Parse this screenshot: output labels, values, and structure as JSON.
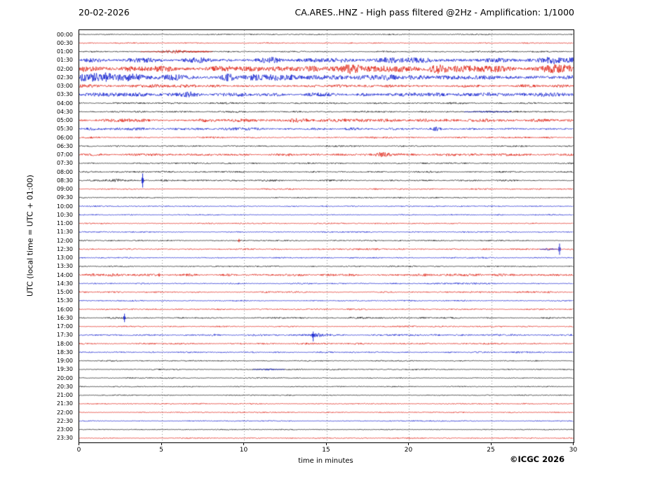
{
  "header": {
    "date": "20-02-2026",
    "title": "CA.ARES..HNZ - High pass filtered @2Hz - Amplification: 1/1000"
  },
  "axes": {
    "y_label": "UTC (local time = UTC + 01:00)",
    "x_label": "time in minutes",
    "x_ticks": [
      0,
      5,
      10,
      15,
      20,
      25,
      30
    ],
    "x_range": [
      0,
      30
    ]
  },
  "footer": {
    "copyright": "©ICGC 2026"
  },
  "colors": {
    "black": "#000000",
    "red": "#dd1100",
    "blue": "#0011cc",
    "grid": "#888888"
  },
  "chart_data": {
    "type": "line",
    "variant": "helicorder",
    "minutes_per_row": 30,
    "x_range": [
      0,
      30
    ],
    "rows": [
      {
        "label": "00:00",
        "color": "black",
        "amp": 0.6,
        "events": []
      },
      {
        "label": "00:30",
        "color": "red",
        "amp": 0.55,
        "events": []
      },
      {
        "label": "01:00",
        "color": "black",
        "amp": 0.7,
        "events": [
          {
            "type": "burst",
            "t": 5.8,
            "width": 1.3,
            "amp": 2.2,
            "color": "red"
          },
          {
            "type": "burst",
            "t": 7.3,
            "width": 0.5,
            "amp": 1.0,
            "color": "red"
          }
        ]
      },
      {
        "label": "01:30",
        "color": "blue",
        "amp": 2.6,
        "events": [
          {
            "type": "burst",
            "t": 11.5,
            "width": 0.8,
            "amp": 1.8
          },
          {
            "type": "burst",
            "t": 20.5,
            "width": 2.5,
            "amp": 1.2
          },
          {
            "type": "burst",
            "t": 29.0,
            "width": 1.2,
            "amp": 1.8
          }
        ]
      },
      {
        "label": "02:00",
        "color": "red",
        "amp": 3.0,
        "events": [
          {
            "type": "burst",
            "t": 16.5,
            "width": 0.9,
            "amp": 2.2
          },
          {
            "type": "burst",
            "t": 22.5,
            "width": 3.0,
            "amp": 2.2
          },
          {
            "type": "burst",
            "t": 29.0,
            "width": 1.2,
            "amp": 2.0
          }
        ]
      },
      {
        "label": "02:30",
        "color": "blue",
        "amp": 3.0,
        "events": [
          {
            "type": "burst",
            "t": 1.8,
            "width": 2.0,
            "amp": 2.6
          },
          {
            "type": "burst",
            "t": 5.3,
            "width": 0.8,
            "amp": 2.2
          },
          {
            "type": "burst",
            "t": 9.2,
            "width": 1.2,
            "amp": 1.2
          }
        ]
      },
      {
        "label": "03:00",
        "color": "red",
        "amp": 1.7,
        "events": []
      },
      {
        "label": "03:30",
        "color": "blue",
        "amp": 2.0,
        "events": [
          {
            "type": "burst",
            "t": 6.9,
            "width": 1.0,
            "amp": 1.8
          },
          {
            "type": "burst",
            "t": 24.6,
            "width": 1.2,
            "amp": 1.3
          },
          {
            "type": "burst",
            "t": 28.2,
            "width": 0.8,
            "amp": 1.4
          }
        ]
      },
      {
        "label": "04:00",
        "color": "black",
        "amp": 0.9,
        "events": []
      },
      {
        "label": "04:30",
        "color": "black",
        "amp": 0.85,
        "events": [
          {
            "type": "burst",
            "t": 24.8,
            "width": 0.9,
            "amp": 1.1,
            "color": "blue"
          }
        ]
      },
      {
        "label": "05:00",
        "color": "red",
        "amp": 1.7,
        "events": [
          {
            "type": "burst",
            "t": 12.9,
            "width": 0.6,
            "amp": 1.4
          }
        ]
      },
      {
        "label": "05:30",
        "color": "blue",
        "amp": 1.4,
        "events": [
          {
            "type": "burst",
            "t": 21.6,
            "width": 0.4,
            "amp": 1.6
          }
        ]
      },
      {
        "label": "06:00",
        "color": "red",
        "amp": 0.9,
        "events": []
      },
      {
        "label": "06:30",
        "color": "black",
        "amp": 0.7,
        "events": []
      },
      {
        "label": "07:00",
        "color": "red",
        "amp": 1.3,
        "events": [
          {
            "type": "burst",
            "t": 18.3,
            "width": 0.6,
            "amp": 1.8
          }
        ]
      },
      {
        "label": "07:30",
        "color": "black",
        "amp": 0.75,
        "events": []
      },
      {
        "label": "08:00",
        "color": "black",
        "amp": 0.8,
        "events": []
      },
      {
        "label": "08:30",
        "color": "black",
        "amp": 0.9,
        "events": [
          {
            "type": "spike",
            "t": 3.85,
            "up": 10,
            "down": 10,
            "color": "blue"
          },
          {
            "type": "burst",
            "t": 2.3,
            "width": 0.5,
            "amp": 0.8
          }
        ]
      },
      {
        "label": "09:00",
        "color": "red",
        "amp": 0.75,
        "events": []
      },
      {
        "label": "09:30",
        "color": "black",
        "amp": 0.65,
        "events": []
      },
      {
        "label": "10:00",
        "color": "blue",
        "amp": 0.65,
        "events": []
      },
      {
        "label": "10:30",
        "color": "blue",
        "amp": 0.6,
        "events": []
      },
      {
        "label": "11:00",
        "color": "red",
        "amp": 0.65,
        "events": []
      },
      {
        "label": "11:30",
        "color": "blue",
        "amp": 0.65,
        "events": []
      },
      {
        "label": "12:00",
        "color": "black",
        "amp": 0.7,
        "events": [
          {
            "type": "spike",
            "t": 9.7,
            "up": 2.5,
            "down": 2.5,
            "color": "red"
          }
        ]
      },
      {
        "label": "12:30",
        "color": "red",
        "amp": 0.8,
        "events": [
          {
            "type": "spike",
            "t": 29.15,
            "up": 8,
            "down": 8,
            "color": "blue"
          },
          {
            "type": "burst",
            "t": 28.5,
            "width": 0.35,
            "amp": 1.4,
            "color": "blue"
          }
        ]
      },
      {
        "label": "13:00",
        "color": "blue",
        "amp": 0.65,
        "events": []
      },
      {
        "label": "13:30",
        "color": "black",
        "amp": 0.65,
        "events": []
      },
      {
        "label": "14:00",
        "color": "red",
        "amp": 1.3,
        "events": [
          {
            "type": "spike",
            "t": 4.85,
            "up": 2.5,
            "down": 2.5
          },
          {
            "type": "burst",
            "t": 2.1,
            "width": 0.6,
            "amp": 0.9
          }
        ]
      },
      {
        "label": "14:30",
        "color": "blue",
        "amp": 0.75,
        "events": []
      },
      {
        "label": "15:00",
        "color": "red",
        "amp": 0.8,
        "events": []
      },
      {
        "label": "15:30",
        "color": "blue",
        "amp": 0.65,
        "events": []
      },
      {
        "label": "16:00",
        "color": "red",
        "amp": 0.75,
        "events": []
      },
      {
        "label": "16:30",
        "color": "black",
        "amp": 0.85,
        "events": [
          {
            "type": "spike",
            "t": 2.75,
            "up": 6,
            "down": 6,
            "color": "blue"
          }
        ]
      },
      {
        "label": "17:00",
        "color": "red",
        "amp": 0.75,
        "events": []
      },
      {
        "label": "17:30",
        "color": "blue",
        "amp": 0.95,
        "events": [
          {
            "type": "spike",
            "t": 14.2,
            "up": 5,
            "down": 9
          },
          {
            "type": "burst",
            "t": 14.5,
            "width": 0.6,
            "amp": 1.2
          }
        ]
      },
      {
        "label": "18:00",
        "color": "red",
        "amp": 0.85,
        "events": []
      },
      {
        "label": "18:30",
        "color": "blue",
        "amp": 0.75,
        "events": []
      },
      {
        "label": "19:00",
        "color": "black",
        "amp": 0.65,
        "events": []
      },
      {
        "label": "19:30",
        "color": "black",
        "amp": 0.65,
        "events": [
          {
            "type": "burst",
            "t": 11.5,
            "width": 0.6,
            "amp": 1.1,
            "color": "blue"
          }
        ]
      },
      {
        "label": "20:00",
        "color": "black",
        "amp": 0.6,
        "events": []
      },
      {
        "label": "20:30",
        "color": "black",
        "amp": 0.55,
        "events": []
      },
      {
        "label": "21:00",
        "color": "black",
        "amp": 0.55,
        "events": []
      },
      {
        "label": "21:30",
        "color": "red",
        "amp": 0.65,
        "events": []
      },
      {
        "label": "22:00",
        "color": "red",
        "amp": 0.6,
        "events": []
      },
      {
        "label": "22:30",
        "color": "blue",
        "amp": 0.6,
        "events": []
      },
      {
        "label": "23:00",
        "color": "black",
        "amp": 0.55,
        "events": []
      },
      {
        "label": "23:30",
        "color": "red",
        "amp": 0.6,
        "events": []
      }
    ]
  }
}
